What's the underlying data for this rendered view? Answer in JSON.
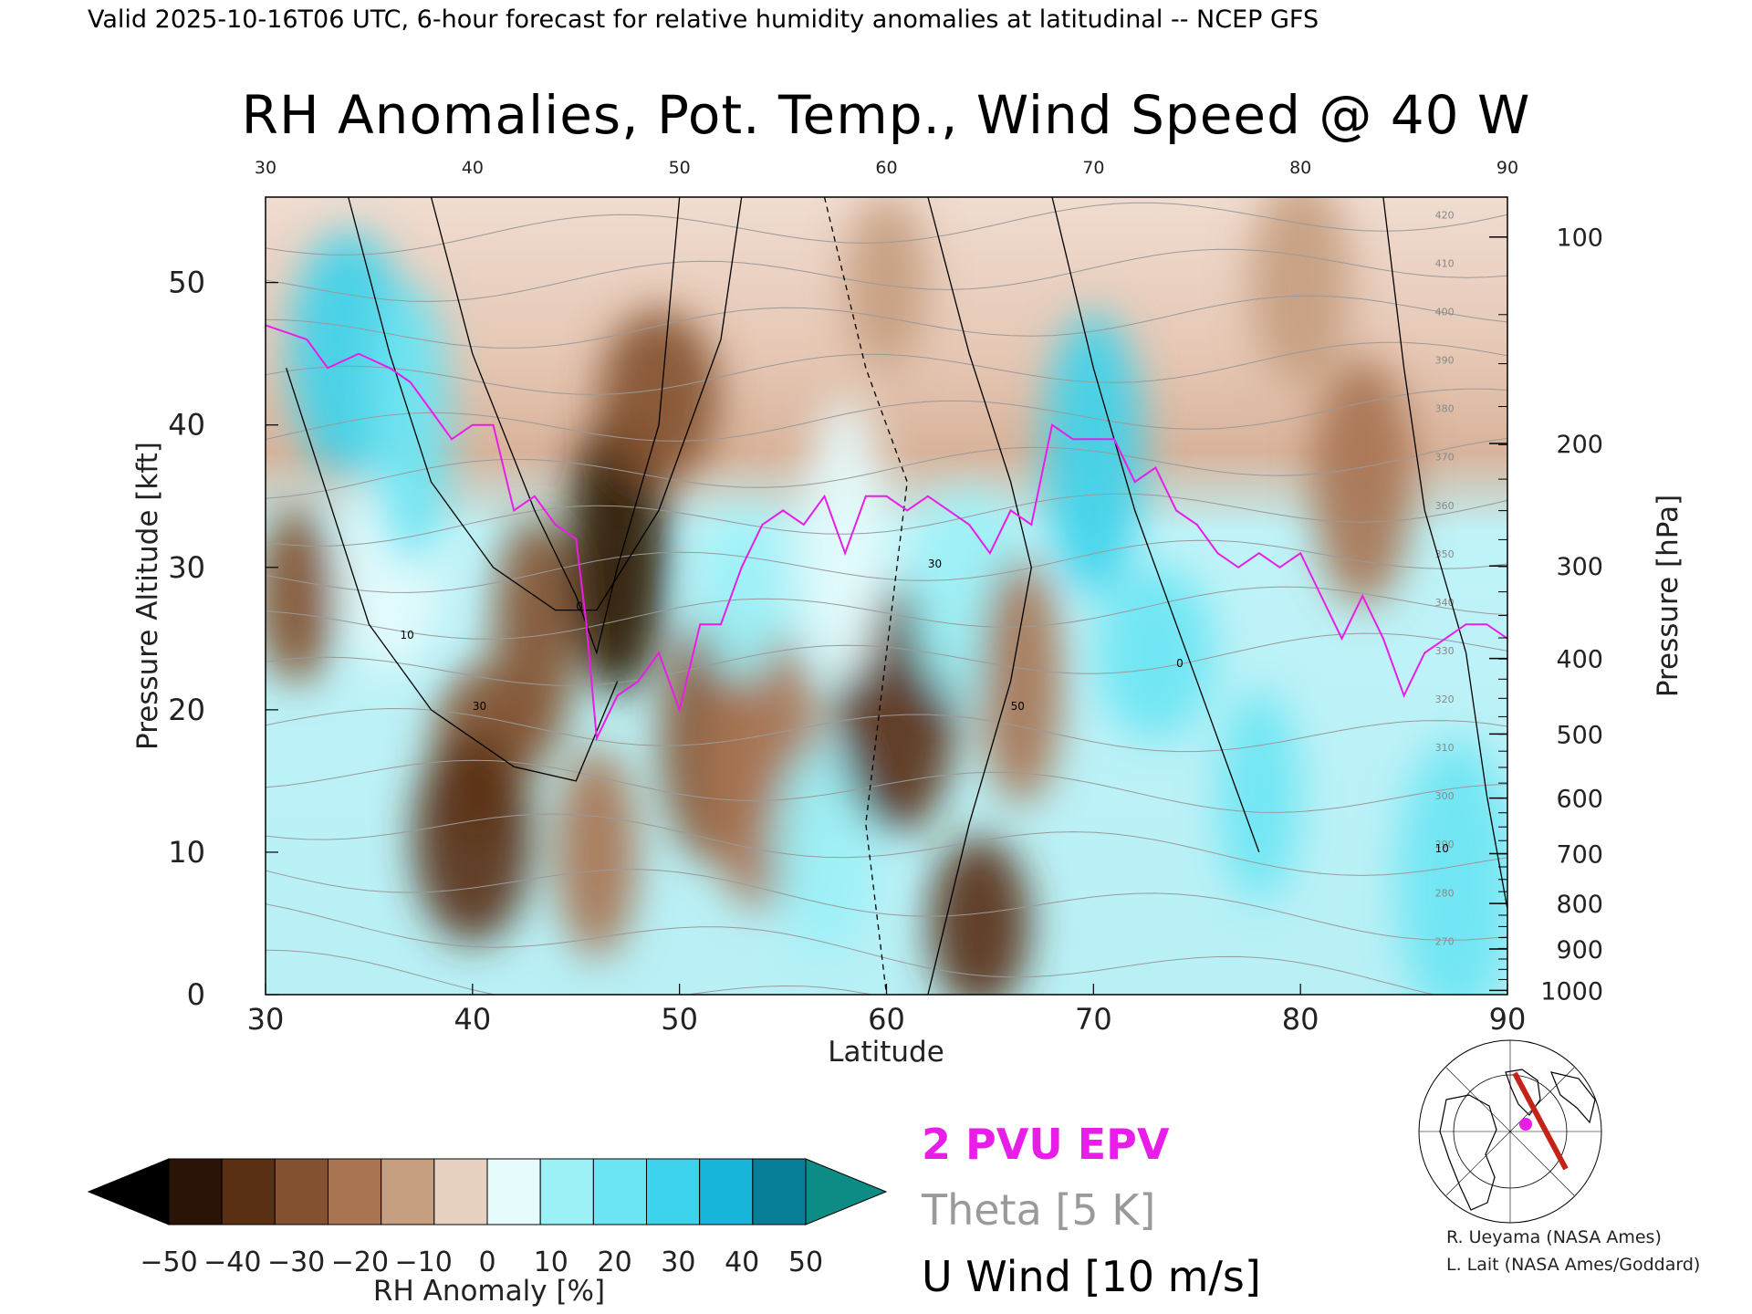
{
  "header": "Valid 2025-10-16T06 UTC, 6-hour forecast for relative humidity anomalies at latitudinal -- NCEP GFS",
  "title": "RH Anomalies, Pot. Temp., Wind Speed @ 40 W",
  "colors": {
    "magenta_epv": "#e81ee8",
    "theta_gray": "#9a9a9a",
    "wind_black": "#000000"
  },
  "chart_data": {
    "type": "heatmap",
    "xlabel": "Latitude",
    "ylabel": "Pressure Altitude [kft]",
    "y2label": "Pressure [hPa]",
    "xlim": [
      30,
      90
    ],
    "ylim": [
      0,
      56
    ],
    "x_ticks": [
      "30",
      "40",
      "50",
      "60",
      "70",
      "80",
      "90"
    ],
    "x_top_ticks": [
      "30",
      "40",
      "50",
      "60",
      "70",
      "80",
      "90"
    ],
    "y_ticks": [
      "0",
      "10",
      "20",
      "30",
      "40",
      "50"
    ],
    "pressure_ticks": [
      {
        "label": "100",
        "kft": 53.2
      },
      {
        "label": "200",
        "kft": 38.7
      },
      {
        "label": "300",
        "kft": 30.1
      },
      {
        "label": "400",
        "kft": 23.6
      },
      {
        "label": "500",
        "kft": 18.3
      },
      {
        "label": "600",
        "kft": 13.8
      },
      {
        "label": "700",
        "kft": 9.9
      },
      {
        "label": "800",
        "kft": 6.4
      },
      {
        "label": "900",
        "kft": 3.2
      },
      {
        "label": "1000",
        "kft": 0.3
      }
    ],
    "rh_anomaly_blobs": [
      {
        "lat": 31.5,
        "kft": 28,
        "value": -30
      },
      {
        "lat": 36,
        "kft": 30,
        "value": 12
      },
      {
        "lat": 34,
        "kft": 45,
        "value": 35
      },
      {
        "lat": 37,
        "kft": 40,
        "value": 30
      },
      {
        "lat": 40.5,
        "kft": 17,
        "value": -35
      },
      {
        "lat": 40,
        "kft": 11,
        "value": -45
      },
      {
        "lat": 43,
        "kft": 25,
        "value": -35
      },
      {
        "lat": 47,
        "kft": 31,
        "value": -50
      },
      {
        "lat": 49,
        "kft": 42,
        "value": -30
      },
      {
        "lat": 46,
        "kft": 10,
        "value": -25
      },
      {
        "lat": 51.5,
        "kft": 18,
        "value": -28
      },
      {
        "lat": 54,
        "kft": 16,
        "value": -22
      },
      {
        "lat": 53,
        "kft": 28,
        "value": 15
      },
      {
        "lat": 57,
        "kft": 10,
        "value": 18
      },
      {
        "lat": 60.5,
        "kft": 20,
        "value": -45
      },
      {
        "lat": 58,
        "kft": 32,
        "value": 10
      },
      {
        "lat": 64.5,
        "kft": 5,
        "value": -40
      },
      {
        "lat": 64,
        "kft": 28,
        "value": 20
      },
      {
        "lat": 66.5,
        "kft": 22,
        "value": -20
      },
      {
        "lat": 70,
        "kft": 38,
        "value": 38
      },
      {
        "lat": 73,
        "kft": 24,
        "value": 30
      },
      {
        "lat": 78,
        "kft": 14,
        "value": 28
      },
      {
        "lat": 83,
        "kft": 36,
        "value": -25
      },
      {
        "lat": 87.5,
        "kft": 8,
        "value": 30
      },
      {
        "lat": 60,
        "kft": 50,
        "value": -12
      },
      {
        "lat": 80,
        "kft": 50,
        "value": -10
      }
    ],
    "epv_2pvu_line": {
      "lat": [
        30,
        32,
        33,
        34.5,
        36,
        37,
        38,
        39,
        40,
        41,
        42,
        43,
        44,
        45,
        45.5,
        46,
        47,
        48,
        49,
        50,
        51,
        52,
        53,
        54,
        55,
        56,
        57,
        58,
        59,
        60,
        61,
        62,
        63,
        64,
        65,
        66,
        67,
        68,
        69,
        70,
        71,
        72,
        73,
        74,
        75,
        76,
        77,
        78,
        79,
        80,
        81,
        82,
        83,
        84,
        85,
        86,
        87,
        88,
        89,
        90
      ],
      "kft": [
        47,
        46,
        44,
        45,
        44,
        43,
        41,
        39,
        40,
        40,
        34,
        35,
        33,
        32,
        26,
        18,
        21,
        22,
        24,
        20,
        26,
        26,
        30,
        33,
        34,
        33,
        35,
        31,
        35,
        35,
        34,
        35,
        34,
        33,
        31,
        34,
        33,
        40,
        39,
        39,
        39,
        36,
        37,
        34,
        33,
        31,
        30,
        31,
        30,
        31,
        28,
        25,
        28,
        25,
        21,
        24,
        25,
        26,
        26,
        25
      ]
    },
    "theta_isentropes_K": [
      "270",
      "280",
      "290",
      "300",
      "310",
      "320",
      "330",
      "340",
      "350",
      "360",
      "370",
      "380",
      "390",
      "400",
      "410",
      "420"
    ],
    "u_wind_contour_labels": [
      "0",
      "10",
      "30",
      "50"
    ],
    "colorbar": {
      "label": "RH Anomaly [%]",
      "ticks": [
        "−50",
        "−40",
        "−30",
        "−20",
        "−10",
        "0",
        "10",
        "20",
        "30",
        "40",
        "50"
      ],
      "colors": [
        "#000000",
        "#2a1407",
        "#5a2f13",
        "#83512f",
        "#a87451",
        "#c59d7f",
        "#e7d2c2",
        "#e5fbfc",
        "#9cf1f7",
        "#6be5f3",
        "#3ed3ec",
        "#16b5d9",
        "#067e98",
        "#0d8c86"
      ]
    }
  },
  "legend": {
    "epv": "2 PVU EPV",
    "theta": "Theta [5 K]",
    "wind": "U Wind [10 m/s]"
  },
  "credits": {
    "line1": "R. Ueyama (NASA Ames)",
    "line2": "L. Lait (NASA Ames/Goddard)"
  }
}
